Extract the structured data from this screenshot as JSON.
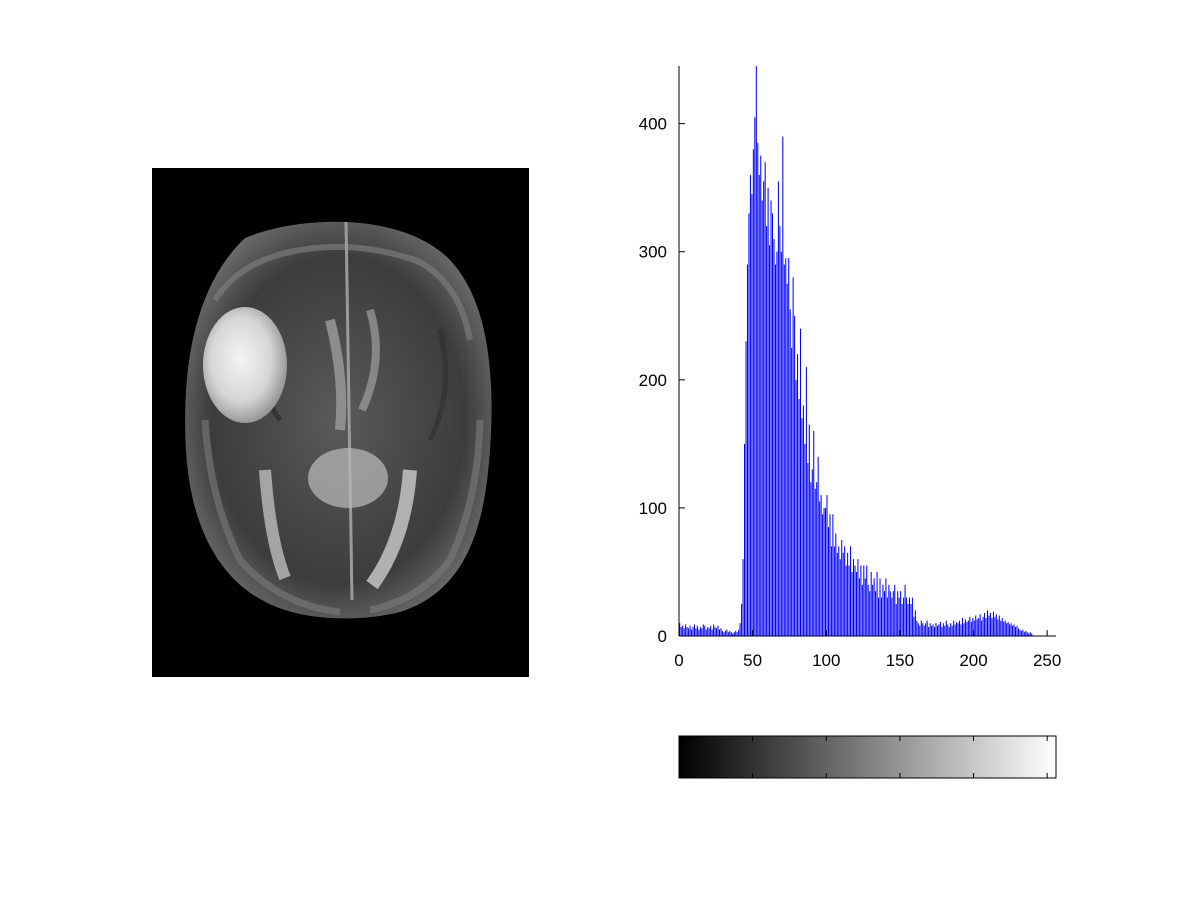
{
  "image_panel": {
    "icon": "mri-brain-axial-slice"
  },
  "chart_data": {
    "type": "bar",
    "title": "",
    "xlabel": "",
    "ylabel": "",
    "xlim": [
      0,
      256
    ],
    "ylim": [
      0,
      445
    ],
    "grid": false,
    "legend": "none",
    "bar_color": "#0000ff",
    "x_ticks": [
      0,
      50,
      100,
      150,
      200,
      250
    ],
    "x_tick_labels": [
      "0",
      "50",
      "100",
      "150",
      "200",
      "250"
    ],
    "y_ticks": [
      0,
      100,
      200,
      300,
      400
    ],
    "y_tick_labels": [
      "0",
      "100",
      "200",
      "300",
      "400"
    ],
    "series": [
      {
        "bin_start": 0,
        "values": [
          10,
          7,
          8,
          6,
          9,
          7,
          6,
          8,
          5,
          7,
          9,
          6,
          8,
          5,
          7,
          6,
          9,
          8,
          5,
          7,
          6,
          8,
          5,
          9,
          7,
          6,
          8,
          5,
          6,
          4,
          3,
          4,
          5,
          3,
          4,
          3,
          2,
          3,
          4,
          3,
          5,
          10,
          25,
          60,
          150,
          230,
          290,
          330,
          360,
          345,
          380,
          405,
          445,
          385,
          360,
          375,
          340,
          355,
          370,
          320,
          350,
          305,
          340,
          330,
          310,
          290,
          300,
          355,
          320,
          300,
          390,
          290,
          295,
          275,
          295,
          255,
          225,
          280,
          250,
          200,
          220,
          185,
          240,
          170,
          180,
          150,
          210,
          135,
          165,
          120,
          130,
          160,
          115,
          120,
          140,
          105,
          110,
          95,
          100,
          100,
          110,
          85,
          95,
          70,
          95,
          70,
          80,
          65,
          70,
          60,
          75,
          65,
          70,
          55,
          65,
          55,
          70,
          50,
          60,
          55,
          50,
          60,
          45,
          55,
          40,
          55,
          45,
          55,
          40,
          35,
          50,
          40,
          45,
          35,
          50,
          30,
          45,
          30,
          40,
          35,
          45,
          30,
          40,
          35,
          30,
          35,
          40,
          25,
          35,
          30,
          35,
          25,
          30,
          40,
          30,
          25,
          30,
          25,
          30,
          15,
          20,
          12,
          10,
          8,
          12,
          10,
          8,
          10,
          12,
          7,
          10,
          8,
          9,
          7,
          10,
          8,
          9,
          11,
          7,
          10,
          8,
          12,
          9,
          7,
          10,
          8,
          12,
          9,
          11,
          10,
          12,
          9,
          14,
          10,
          13,
          11,
          12,
          15,
          11,
          14,
          12,
          16,
          13,
          14,
          17,
          12,
          15,
          18,
          14,
          20,
          16,
          18,
          14,
          19,
          15,
          17,
          13,
          16,
          12,
          14,
          11,
          12,
          10,
          11,
          9,
          10,
          8,
          9,
          7,
          8,
          6,
          5,
          4,
          5,
          3,
          4,
          3,
          2,
          3,
          2
        ]
      }
    ]
  },
  "colorbar": {
    "colors": [
      "#000000",
      "#ffffff"
    ],
    "label": ""
  }
}
